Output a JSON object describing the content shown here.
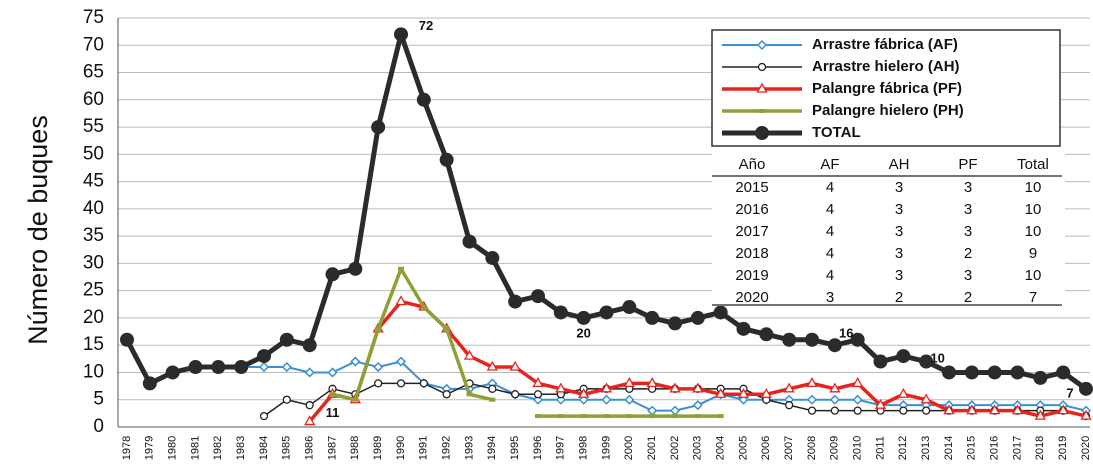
{
  "chart_data": {
    "type": "line",
    "y_label": "Número de buques",
    "categories": [
      "1978",
      "1979",
      "1980",
      "1981",
      "1982",
      "1983",
      "1984",
      "1985",
      "1986",
      "1987",
      "1988",
      "1989",
      "1990",
      "1991",
      "1992",
      "1993",
      "1994",
      "1995",
      "1996",
      "1997",
      "1998",
      "1999",
      "2000",
      "2001",
      "2002",
      "2003",
      "2004",
      "2005",
      "2006",
      "2007",
      "2008",
      "2009",
      "2010",
      "2011",
      "2012",
      "2013",
      "2014",
      "2015",
      "2016",
      "2017",
      "2018",
      "2019",
      "2020"
    ],
    "series": [
      {
        "name": "Arrastre fábrica (AF)",
        "color": "#3a8fd6",
        "marker": "diamond",
        "values": [
          16,
          8,
          10,
          11,
          11,
          11,
          11,
          11,
          10,
          10,
          12,
          11,
          12,
          8,
          7,
          7,
          8,
          6,
          5,
          5,
          5,
          5,
          5,
          3,
          3,
          4,
          6,
          5,
          5,
          5,
          5,
          5,
          5,
          4,
          4,
          4,
          4,
          4,
          4,
          4,
          4,
          4,
          3
        ]
      },
      {
        "name": "Arrastre hielero (AH)",
        "color": "#222222",
        "marker": "circle",
        "values": [
          null,
          null,
          null,
          null,
          null,
          null,
          2,
          5,
          4,
          7,
          6,
          8,
          8,
          8,
          6,
          8,
          7,
          6,
          6,
          6,
          7,
          7,
          7,
          7,
          7,
          7,
          7,
          7,
          5,
          4,
          3,
          3,
          3,
          3,
          3,
          3,
          3,
          3,
          3,
          3,
          3,
          3,
          2
        ]
      },
      {
        "name": "Palangre fábrica (PF)",
        "color": "#e8231c",
        "marker": "triangle",
        "values": [
          null,
          null,
          null,
          null,
          null,
          null,
          null,
          null,
          1,
          6,
          5,
          18,
          23,
          22,
          18,
          13,
          11,
          11,
          8,
          7,
          6,
          7,
          8,
          8,
          7,
          7,
          6,
          6,
          6,
          7,
          8,
          7,
          8,
          4,
          6,
          5,
          3,
          3,
          3,
          3,
          2,
          3,
          2
        ]
      },
      {
        "name": "Palangre hielero (PH)",
        "color": "#8ca236",
        "marker": "square",
        "values": [
          null,
          null,
          null,
          null,
          null,
          null,
          null,
          null,
          null,
          6,
          5,
          18,
          29,
          22,
          18,
          6,
          5,
          null,
          2,
          2,
          2,
          2,
          2,
          2,
          2,
          2,
          2,
          null,
          null,
          null,
          null,
          null,
          null,
          null,
          null,
          null,
          null,
          null,
          null,
          null,
          null,
          null,
          null
        ]
      },
      {
        "name": "TOTAL",
        "color": "#2b2b2b",
        "marker": "big",
        "values": [
          16,
          8,
          10,
          11,
          11,
          11,
          13,
          16,
          15,
          28,
          29,
          55,
          72,
          60,
          49,
          34,
          31,
          23,
          24,
          21,
          20,
          21,
          22,
          20,
          19,
          20,
          21,
          18,
          17,
          16,
          16,
          15,
          16,
          12,
          13,
          12,
          10,
          10,
          10,
          10,
          9,
          10,
          7
        ]
      }
    ],
    "annotations": [
      "72",
      "11",
      "20",
      "16",
      "10",
      "7"
    ],
    "ylim": [
      0,
      75
    ],
    "yticks": [
      0,
      5,
      10,
      15,
      20,
      25,
      30,
      35,
      40,
      45,
      50,
      55,
      60,
      65,
      70,
      75
    ],
    "grid": true,
    "inset_table": {
      "columns": [
        "Año",
        "AF",
        "AH",
        "PF",
        "Total"
      ],
      "rows": [
        [
          2015,
          4,
          3,
          3,
          10
        ],
        [
          2016,
          4,
          3,
          3,
          10
        ],
        [
          2017,
          4,
          3,
          3,
          10
        ],
        [
          2018,
          4,
          3,
          2,
          9
        ],
        [
          2019,
          4,
          3,
          3,
          10
        ],
        [
          2020,
          3,
          2,
          2,
          7
        ]
      ]
    }
  }
}
